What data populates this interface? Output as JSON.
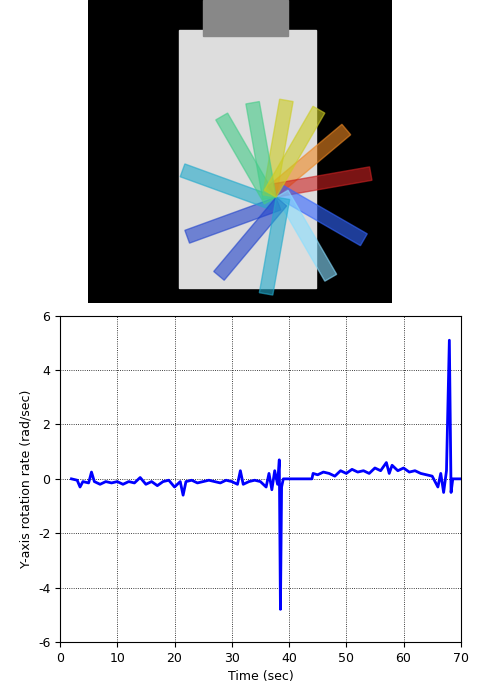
{
  "chart_data": {
    "type": "line",
    "x_label": "Time (sec)",
    "y_label": "Y-axis rotation rate (rad/sec)",
    "xlim": [
      0,
      70
    ],
    "xticks": [
      0,
      10,
      20,
      30,
      40,
      50,
      60,
      70
    ],
    "ylim": [
      -6,
      6
    ],
    "yticks": [
      -6,
      -4,
      -2,
      0,
      2,
      4,
      6
    ],
    "grid": true,
    "series": [
      {
        "name": "Y-axis rotation rate",
        "color": "#0000ff",
        "x": [
          2,
          3,
          3.5,
          4,
          5,
          5.5,
          6,
          7,
          8,
          9,
          10,
          11,
          12,
          13,
          14,
          15,
          16,
          17,
          18,
          19,
          20,
          21,
          21.5,
          22,
          23,
          24,
          25,
          26,
          27,
          28,
          29,
          30,
          31,
          31.5,
          32,
          33,
          34,
          35,
          36,
          36.5,
          37,
          37.5,
          38,
          38.3,
          38.5,
          38.7,
          39,
          44,
          44.2,
          45,
          46,
          47,
          48,
          49,
          50,
          51,
          52,
          53,
          54,
          55,
          56,
          57,
          57.5,
          58,
          59,
          60,
          61,
          62,
          63,
          64,
          65,
          66,
          66.5,
          67,
          67.5,
          68,
          68.3,
          68.6,
          70
        ],
        "values": [
          0,
          -0.05,
          -0.3,
          -0.1,
          -0.15,
          0.25,
          -0.1,
          -0.2,
          -0.1,
          -0.15,
          -0.1,
          -0.2,
          -0.1,
          -0.15,
          0.05,
          -0.2,
          -0.1,
          -0.25,
          -0.1,
          -0.05,
          -0.3,
          -0.1,
          -0.6,
          -0.1,
          -0.05,
          -0.15,
          -0.1,
          -0.05,
          -0.1,
          -0.15,
          -0.05,
          -0.1,
          -0.2,
          0.3,
          -0.2,
          -0.1,
          -0.05,
          -0.1,
          -0.3,
          0.2,
          -0.4,
          0.3,
          -0.2,
          0.7,
          -4.8,
          -0.3,
          0,
          0,
          0.2,
          0.15,
          0.25,
          0.2,
          0.1,
          0.3,
          0.2,
          0.35,
          0.25,
          0.3,
          0.2,
          0.4,
          0.3,
          0.6,
          0.2,
          0.5,
          0.3,
          0.4,
          0.25,
          0.3,
          0.2,
          0.15,
          0.1,
          -0.3,
          0.2,
          -0.5,
          0.3,
          5.1,
          -0.5,
          0,
          0
        ]
      }
    ]
  }
}
